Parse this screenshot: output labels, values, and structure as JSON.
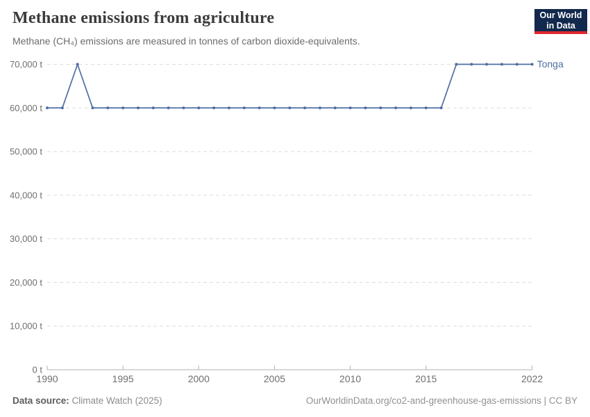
{
  "header": {
    "title": "Methane emissions from agriculture",
    "subtitle": "Methane (CH₄) emissions are measured in tonnes of carbon dioxide-equivalents.",
    "logo_line1": "Our World",
    "logo_line2": "in Data"
  },
  "chart_data": {
    "type": "line",
    "title": "Methane emissions from agriculture",
    "xlabel": "",
    "ylabel": "",
    "xlim": [
      1990,
      2022
    ],
    "ylim": [
      0,
      70000
    ],
    "grid": "horizontal-dashed",
    "legend_position": "end-of-line",
    "x_ticks": [
      {
        "v": 1990,
        "label": "1990"
      },
      {
        "v": 1995,
        "label": "1995"
      },
      {
        "v": 2000,
        "label": "2000"
      },
      {
        "v": 2005,
        "label": "2005"
      },
      {
        "v": 2010,
        "label": "2010"
      },
      {
        "v": 2015,
        "label": "2015"
      },
      {
        "v": 2022,
        "label": "2022"
      }
    ],
    "y_ticks": [
      {
        "v": 0,
        "label": "0 t"
      },
      {
        "v": 10000,
        "label": "10,000 t"
      },
      {
        "v": 20000,
        "label": "20,000 t"
      },
      {
        "v": 30000,
        "label": "30,000 t"
      },
      {
        "v": 40000,
        "label": "40,000 t"
      },
      {
        "v": 50000,
        "label": "50,000 t"
      },
      {
        "v": 60000,
        "label": "60,000 t"
      },
      {
        "v": 70000,
        "label": "70,000 t"
      }
    ],
    "series": [
      {
        "name": "Tonga",
        "color": "#4e6ea3",
        "x": [
          1990,
          1991,
          1992,
          1993,
          1994,
          1995,
          1996,
          1997,
          1998,
          1999,
          2000,
          2001,
          2002,
          2003,
          2004,
          2005,
          2006,
          2007,
          2008,
          2009,
          2010,
          2011,
          2012,
          2013,
          2014,
          2015,
          2016,
          2017,
          2018,
          2019,
          2020,
          2021,
          2022
        ],
        "values": [
          60000,
          60000,
          70000,
          60000,
          60000,
          60000,
          60000,
          60000,
          60000,
          60000,
          60000,
          60000,
          60000,
          60000,
          60000,
          60000,
          60000,
          60000,
          60000,
          60000,
          60000,
          60000,
          60000,
          60000,
          60000,
          60000,
          60000,
          70000,
          70000,
          70000,
          70000,
          70000,
          70000
        ]
      }
    ]
  },
  "footer": {
    "source_label": "Data source:",
    "source_value": "Climate Watch (2025)",
    "link": "OurWorldinData.org/co2-and-greenhouse-gas-emissions | CC BY"
  },
  "colors": {
    "line": "#4e6ea3",
    "gridline": "#dcdcdc",
    "axis": "#b0b0b0",
    "tick_label": "#6e6e6e",
    "logo_bg": "#12294d",
    "logo_accent": "#e0262d"
  }
}
